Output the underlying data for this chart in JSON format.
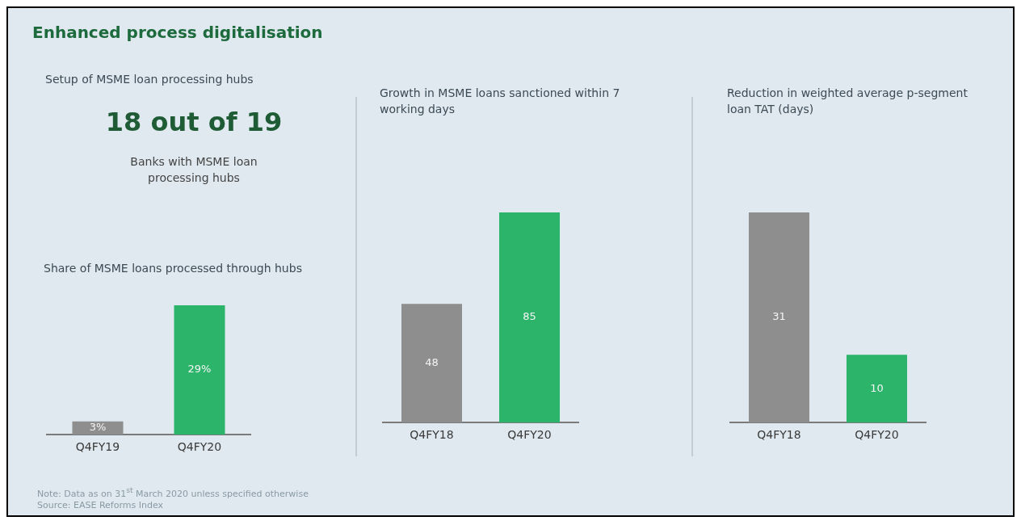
{
  "chart_data": [
    {
      "type": "other",
      "title": "Enhanced process digitalisation",
      "subtitle": "Setup of MSME loan processing hubs",
      "annotations": [
        "18 out of 19",
        "Banks with MSME loan processing hubs"
      ]
    },
    {
      "type": "bar",
      "title": "Share of MSME loans processed through hubs",
      "categories": [
        "Q4FY19",
        "Q4FY20"
      ],
      "values": [
        3,
        29
      ],
      "colors": [
        "#8e8e8e",
        "#2db46b"
      ],
      "value_labels": [
        "3%",
        "29%"
      ]
    },
    {
      "type": "bar",
      "title": "Growth in MSME loans sanctioned within 7 working days",
      "categories": [
        "Q4FY18",
        "Q4FY20"
      ],
      "values": [
        48,
        85
      ],
      "colors": [
        "#8e8e8e",
        "#2db46b"
      ],
      "data_labels": true
    },
    {
      "type": "bar",
      "title": "Reduction in weighted average p-segment loan TAT (days)",
      "categories": [
        "Q4FY18",
        "Q4FY20"
      ],
      "values": [
        31,
        10
      ],
      "colors": [
        "#8e8e8e",
        "#2db46b"
      ],
      "data_labels": true,
      "annotations": [
        "Note: Data as on 31$^{st}$ March 2020 unless specified otherwise",
        "Source: EASE Reforms Index"
      ]
    }
  ]
}
